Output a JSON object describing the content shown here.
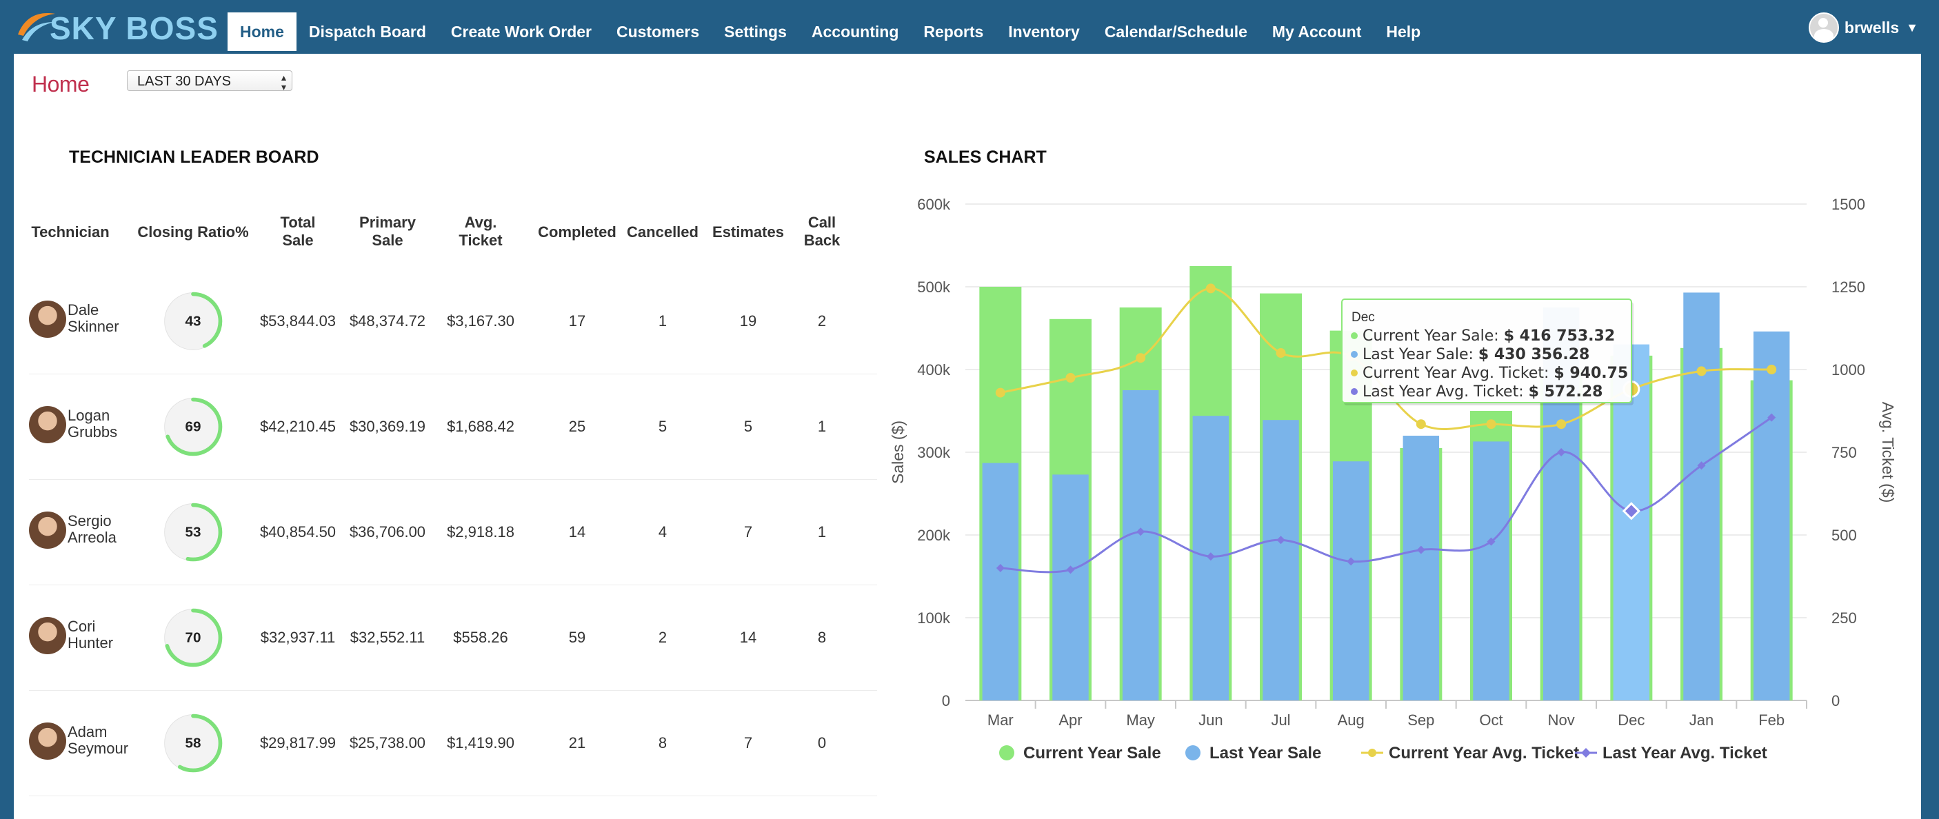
{
  "nav": {
    "logo_text": "SKY BOSS",
    "items": [
      {
        "label": "Home",
        "active": true
      },
      {
        "label": "Dispatch Board"
      },
      {
        "label": "Create Work Order"
      },
      {
        "label": "Customers"
      },
      {
        "label": "Settings"
      },
      {
        "label": "Accounting"
      },
      {
        "label": "Reports"
      },
      {
        "label": "Inventory"
      },
      {
        "label": "Calendar/Schedule"
      },
      {
        "label": "My Account"
      },
      {
        "label": "Help"
      }
    ],
    "user": "brwells"
  },
  "page": {
    "breadcrumb": "Home",
    "date_range": "LAST 30 DAYS"
  },
  "leaderboard": {
    "title": "TECHNICIAN LEADER BOARD",
    "columns": [
      "Technician",
      "Closing Ratio%",
      "Total Sale",
      "Primary Sale",
      "Avg. Ticket",
      "Completed",
      "Cancelled",
      "Estimates",
      "Call Back"
    ],
    "rows": [
      {
        "first": "Dale",
        "last": "Skinner",
        "ratio": 43,
        "total": "$53,844.03",
        "primary": "$48,374.72",
        "avg": "$3,167.30",
        "completed": "17",
        "cancelled": "1",
        "estimates": "19",
        "callback": "2"
      },
      {
        "first": "Logan",
        "last": "Grubbs",
        "ratio": 69,
        "total": "$42,210.45",
        "primary": "$30,369.19",
        "avg": "$1,688.42",
        "completed": "25",
        "cancelled": "5",
        "estimates": "5",
        "callback": "1"
      },
      {
        "first": "Sergio",
        "last": "Arreola",
        "ratio": 53,
        "total": "$40,854.50",
        "primary": "$36,706.00",
        "avg": "$2,918.18",
        "completed": "14",
        "cancelled": "4",
        "estimates": "7",
        "callback": "1"
      },
      {
        "first": "Cori",
        "last": "Hunter",
        "ratio": 70,
        "total": "$32,937.11",
        "primary": "$32,552.11",
        "avg": "$558.26",
        "completed": "59",
        "cancelled": "2",
        "estimates": "14",
        "callback": "8"
      },
      {
        "first": "Adam",
        "last": "Seymour",
        "ratio": 58,
        "total": "$29,817.99",
        "primary": "$25,738.00",
        "avg": "$1,419.90",
        "completed": "21",
        "cancelled": "8",
        "estimates": "7",
        "callback": "0"
      }
    ],
    "gauge_color": "#7de07a"
  },
  "chart_title": "SALES CHART",
  "chart_data": {
    "type": "bar",
    "categories": [
      "Mar",
      "Apr",
      "May",
      "Jun",
      "Jul",
      "Aug",
      "Sep",
      "Oct",
      "Nov",
      "Dec",
      "Jan",
      "Feb"
    ],
    "ylabel": "Sales ($)",
    "y2label": "Avg. Ticket ($)",
    "ylim": [
      0,
      600000
    ],
    "y2lim": [
      0,
      1500
    ],
    "yticks": [
      "0",
      "100k",
      "200k",
      "300k",
      "400k",
      "500k",
      "600k"
    ],
    "y2ticks": [
      "0",
      "250",
      "500",
      "750",
      "1000",
      "1250",
      "1500"
    ],
    "series": [
      {
        "name": "Current Year Sale",
        "type": "bar",
        "color": "#8de87a",
        "values": [
          500000,
          461000,
          475000,
          525000,
          492000,
          447000,
          305000,
          350000,
          400000,
          416753.32,
          426000,
          387000
        ]
      },
      {
        "name": "Last Year Sale",
        "type": "bar",
        "color": "#7ab4ea",
        "values": [
          287000,
          273000,
          375000,
          344000,
          339000,
          289000,
          320000,
          313000,
          475000,
          430356.28,
          493000,
          446000
        ]
      },
      {
        "name": "Current Year Avg. Ticket",
        "type": "line",
        "axis": "y2",
        "color": "#e8d24a",
        "values": [
          930,
          975,
          1035,
          1245,
          1050,
          1040,
          835,
          835,
          835,
          940.75,
          995,
          1000
        ]
      },
      {
        "name": "Last Year Avg. Ticket",
        "type": "line",
        "axis": "y2",
        "color": "#7f7be0",
        "values": [
          400,
          395,
          510,
          435,
          485,
          420,
          455,
          480,
          750,
          572.28,
          710,
          855
        ]
      }
    ],
    "tooltip": {
      "category": "Dec",
      "lines": [
        {
          "label": "Current Year Sale: ",
          "value": "$ 416 753.32"
        },
        {
          "label": "Last Year Sale: ",
          "value": "$ 430 356.28"
        },
        {
          "label": "Current Year Avg. Ticket: ",
          "value": "$ 940.75"
        },
        {
          "label": "Last Year Avg. Ticket: ",
          "value": "$ 572.28"
        }
      ]
    },
    "legend_position": "bottom",
    "grid": true
  }
}
